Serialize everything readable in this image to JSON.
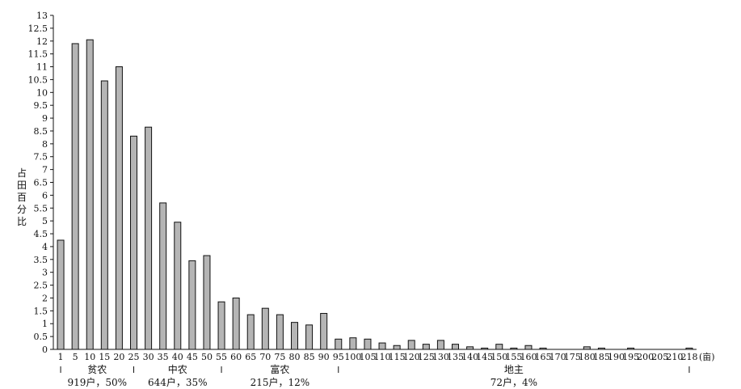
{
  "chart_data": {
    "type": "bar",
    "ylabel": "占田百分比",
    "x_unit": "(亩)",
    "ylim": [
      0,
      13
    ],
    "yticks": [
      "0",
      "0.5",
      "1",
      "1.5",
      "2",
      "2.5",
      "3",
      "3.5",
      "4",
      "4.5",
      "5",
      "5.5",
      "6",
      "6.5",
      "7",
      "7.5",
      "8",
      "8.5",
      "9",
      "9.5",
      "10",
      "10.5",
      "11",
      "11.5",
      "12",
      "12.5",
      "13"
    ],
    "categories": [
      "1",
      "5",
      "10",
      "15",
      "20",
      "25",
      "30",
      "35",
      "40",
      "45",
      "50",
      "55",
      "60",
      "65",
      "70",
      "75",
      "80",
      "85",
      "90",
      "95",
      "100",
      "105",
      "110",
      "115",
      "120",
      "125",
      "130",
      "135",
      "140",
      "145",
      "150",
      "155",
      "160",
      "165",
      "170",
      "175",
      "180",
      "185",
      "190",
      "195",
      "200",
      "205",
      "210",
      "218"
    ],
    "values": [
      4.25,
      11.9,
      12.05,
      10.45,
      11.0,
      8.3,
      8.65,
      5.7,
      4.95,
      3.45,
      3.65,
      1.85,
      2.0,
      1.35,
      1.6,
      1.35,
      1.05,
      0.95,
      1.4,
      0.4,
      0.45,
      0.4,
      0.25,
      0.15,
      0.35,
      0.2,
      0.35,
      0.2,
      0.1,
      0.05,
      0.2,
      0.05,
      0.15,
      0.05,
      0,
      0,
      0.1,
      0.05,
      0,
      0.05,
      0,
      0,
      0,
      0.05
    ],
    "groups": [
      {
        "name": "贫农",
        "stat": "919户，50%",
        "start": "1",
        "end": "25"
      },
      {
        "name": "中农",
        "stat": "644户，35%",
        "start": "25",
        "end": "55"
      },
      {
        "name": "富农",
        "stat": "215户，12%",
        "start": "55",
        "end": "95"
      },
      {
        "name": "地主",
        "stat": "72户，4%",
        "start": "95",
        "end": "218"
      }
    ],
    "colors": {
      "bar": "#b5b5b5",
      "stroke": "#111111",
      "text": "#111111"
    },
    "grid": false
  }
}
